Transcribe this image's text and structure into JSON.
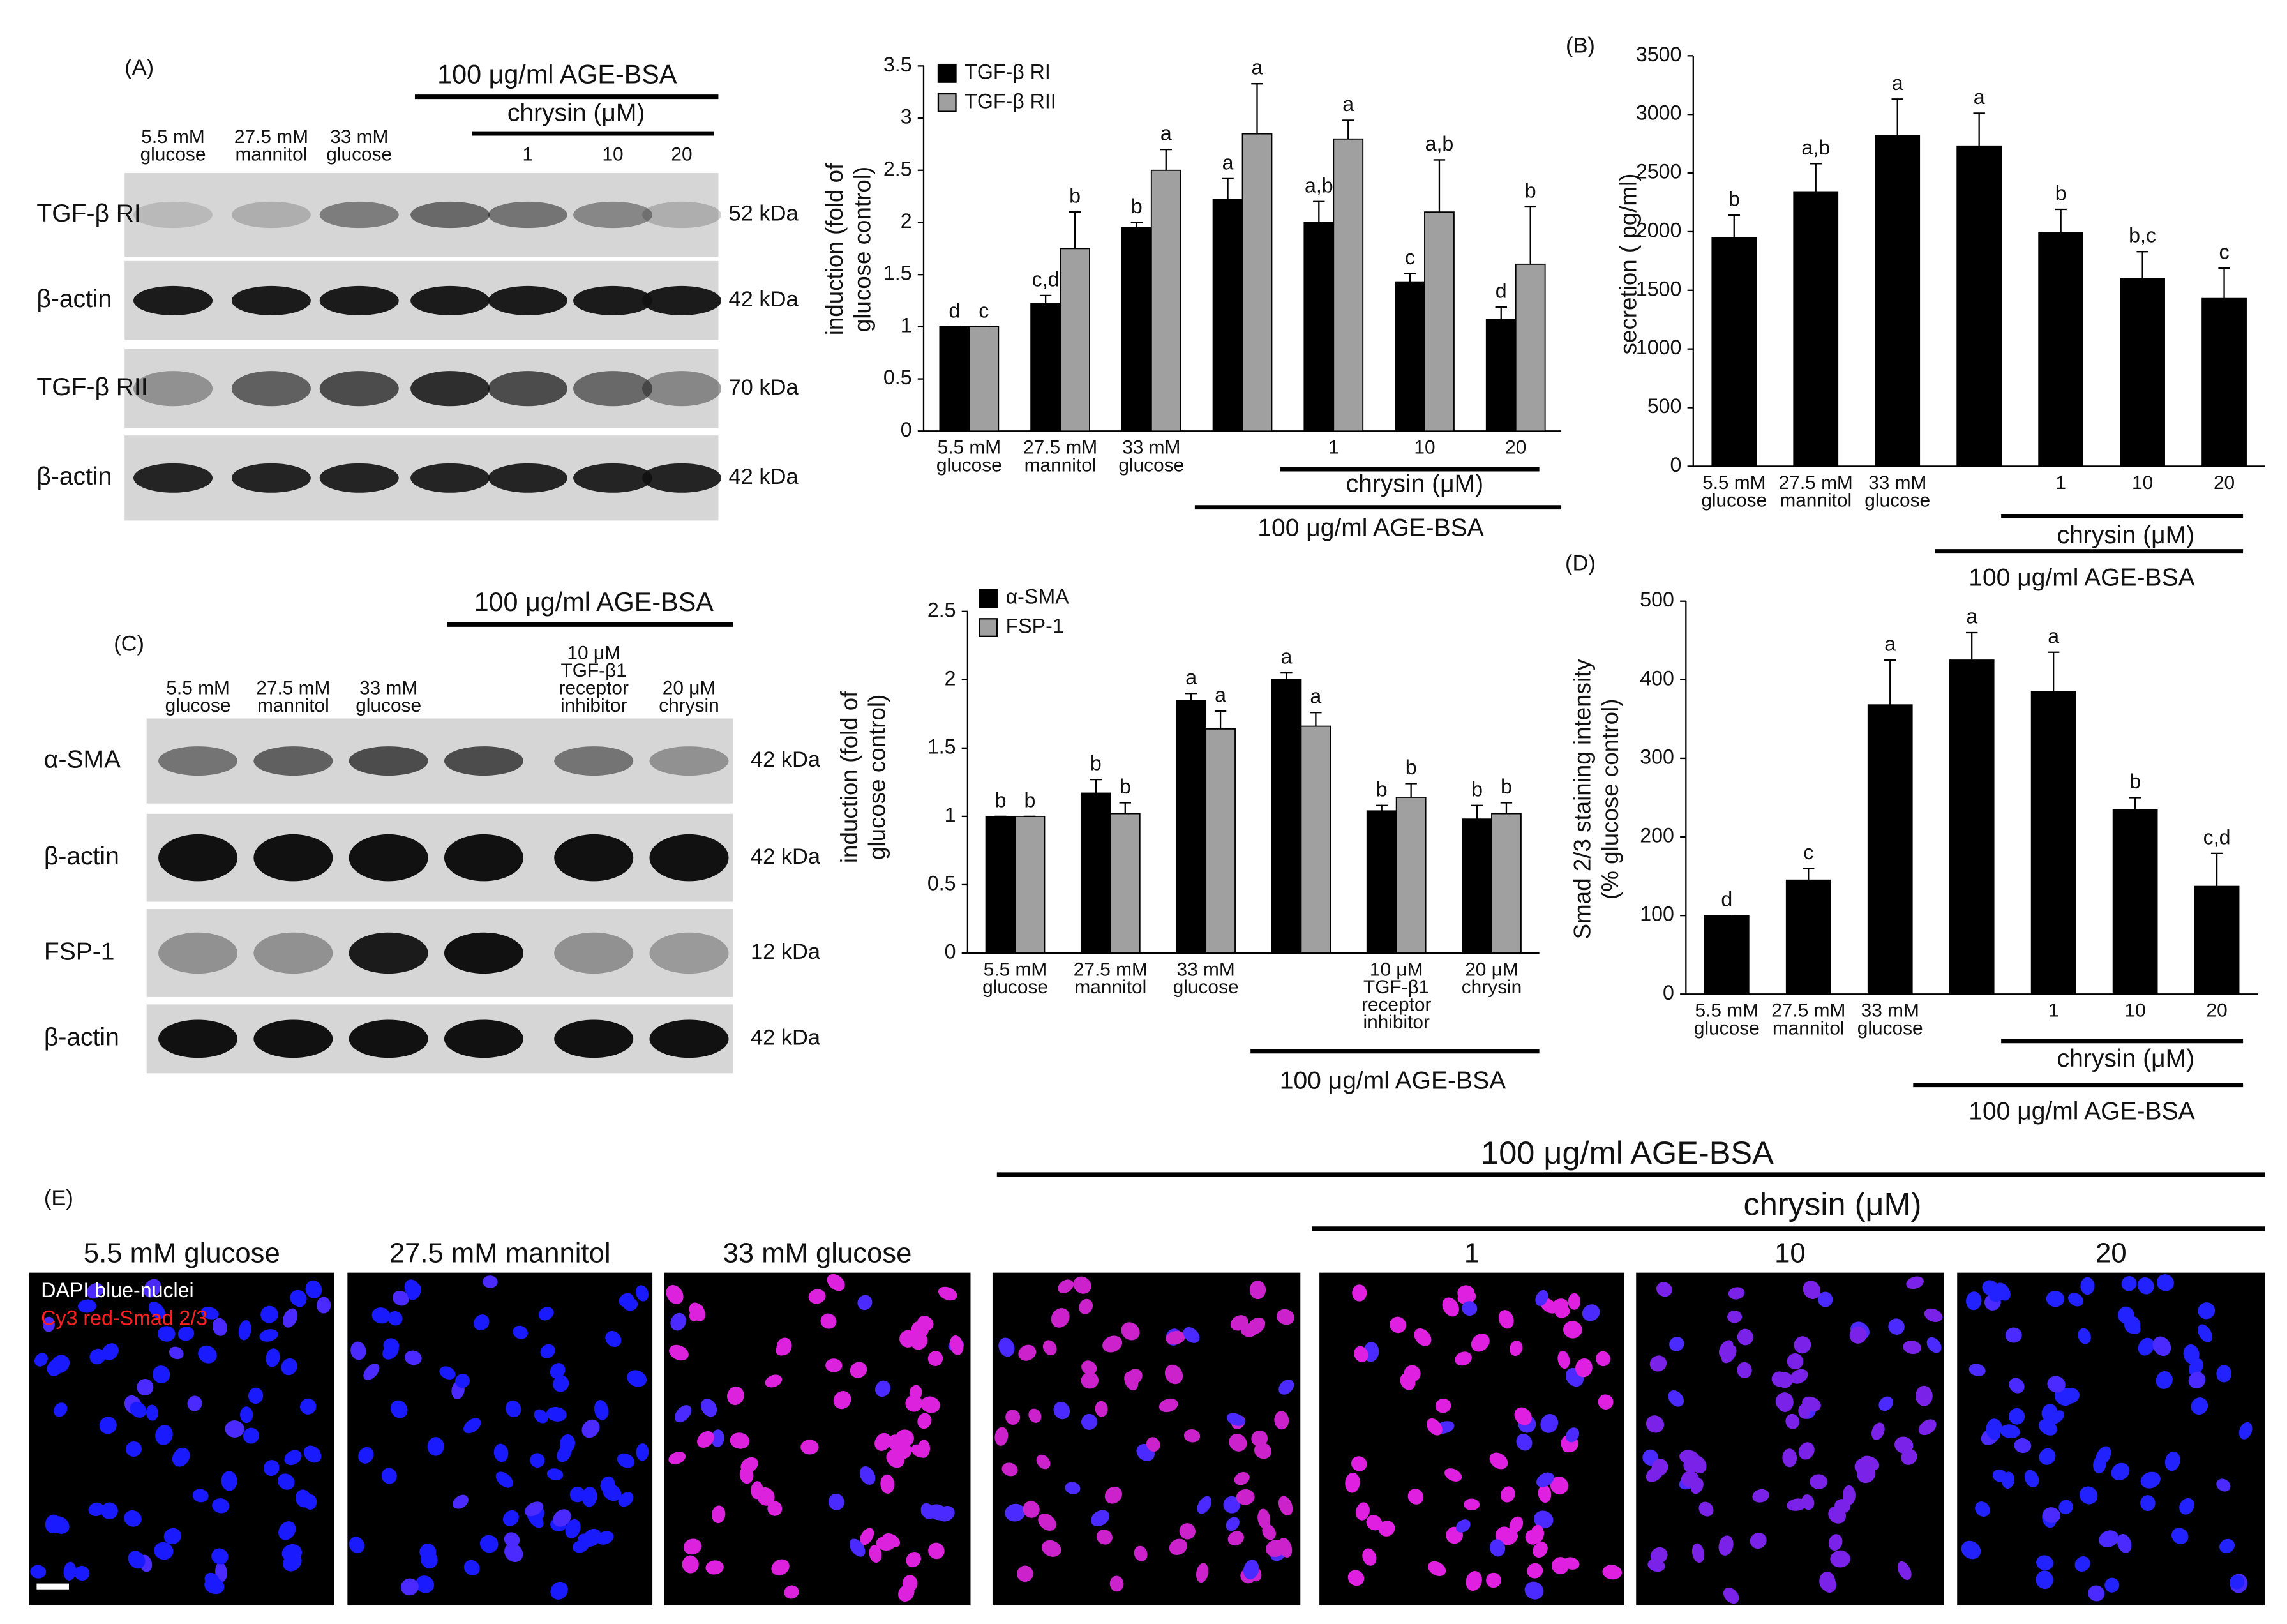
{
  "chart_data": [
    {
      "type": "bar",
      "panel": "(A)",
      "ylabel": [
        "induction (fold of",
        "glucose control)"
      ],
      "categories": [
        [
          "5.5 mM",
          "glucose"
        ],
        [
          "27.5 mM",
          "mannitol"
        ],
        [
          "33 mM",
          "glucose"
        ],
        null,
        [
          "1"
        ],
        [
          "10"
        ],
        [
          "20"
        ]
      ],
      "series": [
        {
          "name": "TGF-β RI",
          "color": "#000000",
          "values": [
            1.0,
            1.22,
            1.95,
            2.22,
            2.0,
            1.43,
            1.07
          ],
          "errors": [
            0,
            0.08,
            0.05,
            0.2,
            0.2,
            0.08,
            0.12
          ],
          "letters": [
            "d",
            "c,d",
            "b",
            "a",
            "a,b",
            "c",
            "d"
          ]
        },
        {
          "name": "TGF-β RII",
          "color": "#a0a0a0",
          "values": [
            1.0,
            1.75,
            2.5,
            2.85,
            2.8,
            2.1,
            1.6
          ],
          "errors": [
            0,
            0.35,
            0.2,
            0.48,
            0.18,
            0.5,
            0.55
          ],
          "letters": [
            "c",
            "b",
            "a",
            "a",
            "a",
            "a,b",
            "b"
          ]
        }
      ],
      "ylim": [
        0,
        3.5
      ],
      "yticks": [
        0,
        0.5,
        1,
        1.5,
        2,
        2.5,
        3,
        3.5
      ],
      "legend": "top-left",
      "annotations": [
        "chrysin (μM)",
        "100 μg/ml AGE-BSA"
      ]
    },
    {
      "type": "bar",
      "panel": "(B)",
      "ylabel": [
        "secretion ( pg/ml)"
      ],
      "categories": [
        [
          "5.5 mM",
          "glucose"
        ],
        [
          "27.5 mM",
          "mannitol"
        ],
        [
          "33 mM",
          "glucose"
        ],
        null,
        [
          "1"
        ],
        [
          "10"
        ],
        [
          "20"
        ]
      ],
      "series": [
        {
          "name": null,
          "color": "#000000",
          "values": [
            1950,
            2340,
            2820,
            2730,
            1990,
            1600,
            1430
          ],
          "errors": [
            190,
            240,
            310,
            280,
            200,
            230,
            260
          ],
          "letters": [
            "b",
            "a,b",
            "a",
            "a",
            "b",
            "b,c",
            "c"
          ]
        }
      ],
      "ylim": [
        0,
        3500
      ],
      "yticks": [
        0,
        500,
        1000,
        1500,
        2000,
        2500,
        3000,
        3500
      ],
      "annotations": [
        "chrysin (μM)",
        "100 μg/ml AGE-BSA"
      ]
    },
    {
      "type": "bar",
      "panel": "(C)",
      "ylabel": [
        "induction (fold of",
        "glucose control)"
      ],
      "categories": [
        [
          "5.5 mM",
          "glucose"
        ],
        [
          "27.5 mM",
          "mannitol"
        ],
        [
          "33 mM",
          "glucose"
        ],
        null,
        [
          "10 μM",
          "TGF-β1",
          "receptor",
          "inhibitor"
        ],
        [
          "20 μM",
          "chrysin"
        ]
      ],
      "series": [
        {
          "name": "α-SMA",
          "color": "#000000",
          "values": [
            1.0,
            1.17,
            1.85,
            2.0,
            1.04,
            0.98
          ],
          "errors": [
            0,
            0.1,
            0.05,
            0.05,
            0.04,
            0.1
          ],
          "letters": [
            "b",
            "b",
            "a",
            "a",
            "b",
            "b"
          ]
        },
        {
          "name": "FSP-1",
          "color": "#a0a0a0",
          "values": [
            1.0,
            1.02,
            1.64,
            1.66,
            1.14,
            1.02
          ],
          "errors": [
            0,
            0.08,
            0.13,
            0.1,
            0.1,
            0.08
          ],
          "letters": [
            "b",
            "b",
            "a",
            "a",
            "b",
            "b"
          ]
        }
      ],
      "ylim": [
        0,
        2.5
      ],
      "yticks": [
        0,
        0.5,
        1,
        1.5,
        2,
        2.5
      ],
      "legend": "top-left",
      "annotations": [
        "100 μg/ml AGE-BSA"
      ]
    },
    {
      "type": "bar",
      "panel": "(D)",
      "ylabel": [
        "Smad 2/3 staining intensity",
        "(% glucose control)"
      ],
      "categories": [
        [
          "5.5 mM",
          "glucose"
        ],
        [
          "27.5 mM",
          "mannitol"
        ],
        [
          "33 mM",
          "glucose"
        ],
        null,
        [
          "1"
        ],
        [
          "10"
        ],
        [
          "20"
        ]
      ],
      "series": [
        {
          "name": null,
          "color": "#000000",
          "values": [
            100,
            145,
            368,
            425,
            385,
            235,
            137
          ],
          "errors": [
            0,
            15,
            57,
            35,
            50,
            15,
            42
          ],
          "letters": [
            "d",
            "c",
            "a",
            "a",
            "a",
            "b",
            "c,d"
          ]
        }
      ],
      "ylim": [
        0,
        500
      ],
      "yticks": [
        0,
        100,
        200,
        300,
        400,
        500
      ],
      "annotations": [
        "chrysin (μM)",
        "100 μg/ml AGE-BSA"
      ]
    }
  ],
  "blots": [
    {
      "panel": "(A)",
      "top_label": "100 μg/ml AGE-BSA",
      "sub_label": "chrysin (μM)",
      "lanes": [
        [
          "5.5 mM",
          "glucose"
        ],
        [
          "27.5 mM",
          "mannitol"
        ],
        [
          "33 mM",
          "glucose"
        ],
        null,
        [
          "1"
        ],
        [
          "10"
        ],
        [
          "20"
        ]
      ],
      "rows": [
        {
          "protein": "TGF-β RI",
          "size": "52 kDa"
        },
        {
          "protein": "β-actin",
          "size": "42 kDa"
        },
        {
          "protein": "TGF-β RII",
          "size": "70 kDa"
        },
        {
          "protein": "β-actin",
          "size": "42 kDa"
        }
      ]
    },
    {
      "panel": "(C)",
      "top_label": "100 μg/ml AGE-BSA",
      "lanes": [
        [
          "5.5 mM",
          "glucose"
        ],
        [
          "27.5 mM",
          "mannitol"
        ],
        [
          "33 mM",
          "glucose"
        ],
        null,
        [
          "10 μM",
          "TGF-β1",
          "receptor",
          "inhibitor"
        ],
        [
          "20 μM",
          "chrysin"
        ]
      ],
      "rows": [
        {
          "protein": "α-SMA",
          "size": "42 kDa"
        },
        {
          "protein": "β-actin",
          "size": "42 kDa"
        },
        {
          "protein": "FSP-1",
          "size": "12 kDa"
        },
        {
          "protein": "β-actin",
          "size": "42 kDa"
        }
      ]
    }
  ],
  "micrographs": {
    "panel": "(E)",
    "top_label": "100 μg/ml AGE-BSA",
    "sub_label": "chrysin (μM)",
    "titles": [
      "5.5 mM glucose",
      "27.5 mM mannitol",
      "33 mM glucose",
      null,
      "1",
      "10",
      "20"
    ],
    "legend": [
      "DAPI blue-nuclei",
      "Cy3 red-Smad 2/3"
    ]
  }
}
